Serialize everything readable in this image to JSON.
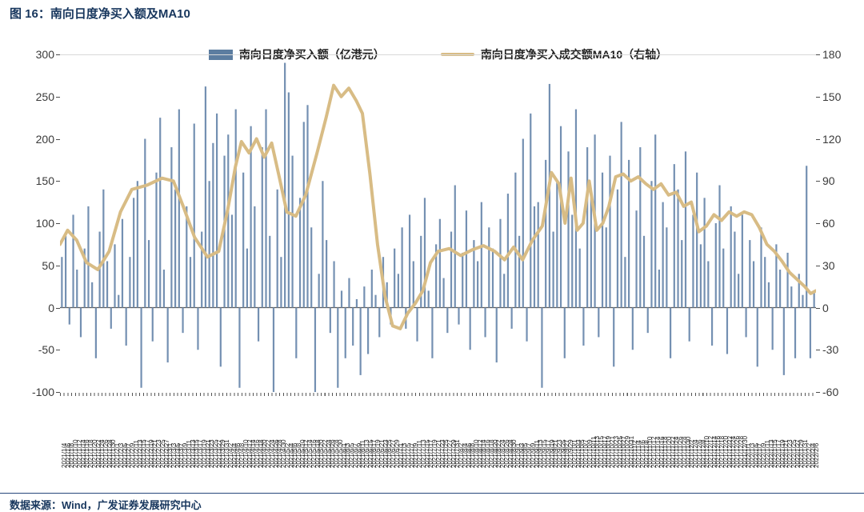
{
  "title": "图 16：南向日度净买入额及MA10",
  "legend": [
    {
      "label": "南向日度净买入额（亿港元）",
      "type": "bar",
      "color": "#5c7da0"
    },
    {
      "label": "南向日度净买入成交额MA10（右轴）",
      "type": "line",
      "color": "#d8bc85"
    }
  ],
  "footer": {
    "source": "数据来源：Wind，广发证券发展研究中心"
  },
  "chart_data": {
    "type": "combo",
    "title": "南向日度净买入额及MA10",
    "left_axis": {
      "ticks": [
        300,
        250,
        200,
        150,
        100,
        50,
        0,
        -50,
        -100
      ],
      "range": [
        -100,
        300
      ]
    },
    "right_axis": {
      "ticks": [
        180,
        150,
        120,
        90,
        60,
        30,
        0,
        -30,
        -60
      ],
      "range": [
        -60,
        180
      ]
    },
    "x_axis": {
      "start_date": "2021/1/4",
      "step_days": 2,
      "count": 200
    },
    "series": [
      {
        "name": "南向日度净买入额（亿港元）",
        "type": "bar",
        "axis": "left",
        "color": "#7490b2",
        "values": [
          60,
          85,
          -20,
          110,
          45,
          -35,
          70,
          120,
          30,
          -60,
          90,
          140,
          55,
          -25,
          75,
          15,
          105,
          -45,
          60,
          130,
          150,
          -95,
          200,
          80,
          -40,
          160,
          225,
          45,
          -65,
          190,
          140,
          235,
          -30,
          120,
          60,
          218,
          -50,
          90,
          262,
          150,
          195,
          230,
          -70,
          180,
          205,
          110,
          235,
          -95,
          160,
          70,
          215,
          120,
          -40,
          190,
          235,
          85,
          -100,
          140,
          60,
          290,
          255,
          180,
          -60,
          130,
          220,
          240,
          95,
          -100,
          40,
          150,
          80,
          -30,
          55,
          -95,
          20,
          -60,
          35,
          -45,
          10,
          -80,
          25,
          -55,
          45,
          15,
          -35,
          60,
          30,
          -20,
          70,
          40,
          95,
          -25,
          110,
          55,
          -40,
          85,
          130,
          20,
          -60,
          75,
          105,
          35,
          -30,
          90,
          145,
          -20,
          65,
          115,
          -50,
          80,
          55,
          125,
          -35,
          95,
          70,
          -65,
          105,
          40,
          135,
          -25,
          160,
          85,
          200,
          -40,
          230,
          120,
          125,
          -95,
          175,
          265,
          90,
          150,
          215,
          -60,
          185,
          110,
          235,
          70,
          -45,
          190,
          130,
          205,
          -35,
          160,
          95,
          180,
          -70,
          140,
          220,
          60,
          175,
          -50,
          115,
          190,
          85,
          -30,
          150,
          205,
          45,
          125,
          95,
          -60,
          170,
          140,
          80,
          185,
          -40,
          110,
          160,
          75,
          130,
          55,
          -45,
          100,
          145,
          70,
          -55,
          120,
          90,
          40,
          110,
          -35,
          80,
          55,
          -70,
          95,
          60,
          30,
          -50,
          75,
          45,
          -80,
          65,
          25,
          -60,
          40,
          15,
          168,
          -60,
          20
        ]
      },
      {
        "name": "南向日度净买入成交额MA10（右轴）",
        "type": "line",
        "axis": "right",
        "color": "#d8bc85",
        "keypoints": [
          [
            0,
            45
          ],
          [
            0.01,
            55
          ],
          [
            0.022,
            48
          ],
          [
            0.035,
            32
          ],
          [
            0.05,
            27
          ],
          [
            0.065,
            40
          ],
          [
            0.08,
            68
          ],
          [
            0.095,
            84
          ],
          [
            0.115,
            87
          ],
          [
            0.135,
            92
          ],
          [
            0.15,
            90
          ],
          [
            0.163,
            72
          ],
          [
            0.178,
            50
          ],
          [
            0.195,
            36
          ],
          [
            0.21,
            40
          ],
          [
            0.222,
            70
          ],
          [
            0.232,
            100
          ],
          [
            0.24,
            118
          ],
          [
            0.25,
            110
          ],
          [
            0.26,
            120
          ],
          [
            0.27,
            107
          ],
          [
            0.28,
            117
          ],
          [
            0.29,
            93
          ],
          [
            0.3,
            68
          ],
          [
            0.312,
            65
          ],
          [
            0.325,
            80
          ],
          [
            0.34,
            110
          ],
          [
            0.352,
            135
          ],
          [
            0.362,
            158
          ],
          [
            0.372,
            150
          ],
          [
            0.382,
            156
          ],
          [
            0.392,
            147
          ],
          [
            0.4,
            138
          ],
          [
            0.41,
            95
          ],
          [
            0.42,
            45
          ],
          [
            0.43,
            8
          ],
          [
            0.44,
            -13
          ],
          [
            0.45,
            -15
          ],
          [
            0.46,
            -4
          ],
          [
            0.47,
            3
          ],
          [
            0.48,
            12
          ],
          [
            0.49,
            32
          ],
          [
            0.5,
            40
          ],
          [
            0.515,
            42
          ],
          [
            0.53,
            37
          ],
          [
            0.545,
            41
          ],
          [
            0.56,
            44
          ],
          [
            0.575,
            40
          ],
          [
            0.588,
            34
          ],
          [
            0.6,
            43
          ],
          [
            0.612,
            34
          ],
          [
            0.625,
            48
          ],
          [
            0.638,
            58
          ],
          [
            0.65,
            96
          ],
          [
            0.66,
            88
          ],
          [
            0.668,
            60
          ],
          [
            0.676,
            92
          ],
          [
            0.684,
            55
          ],
          [
            0.692,
            60
          ],
          [
            0.7,
            90
          ],
          [
            0.71,
            55
          ],
          [
            0.718,
            60
          ],
          [
            0.726,
            72
          ],
          [
            0.735,
            93
          ],
          [
            0.745,
            95
          ],
          [
            0.755,
            90
          ],
          [
            0.765,
            93
          ],
          [
            0.775,
            88
          ],
          [
            0.785,
            84
          ],
          [
            0.795,
            88
          ],
          [
            0.805,
            80
          ],
          [
            0.815,
            82
          ],
          [
            0.825,
            72
          ],
          [
            0.835,
            75
          ],
          [
            0.845,
            54
          ],
          [
            0.855,
            58
          ],
          [
            0.865,
            66
          ],
          [
            0.875,
            62
          ],
          [
            0.885,
            68
          ],
          [
            0.895,
            65
          ],
          [
            0.905,
            68
          ],
          [
            0.915,
            66
          ],
          [
            0.925,
            57
          ],
          [
            0.935,
            45
          ],
          [
            0.945,
            40
          ],
          [
            0.955,
            33
          ],
          [
            0.965,
            25
          ],
          [
            0.975,
            20
          ],
          [
            0.985,
            15
          ],
          [
            0.993,
            10
          ],
          [
            1,
            12
          ]
        ]
      }
    ]
  }
}
